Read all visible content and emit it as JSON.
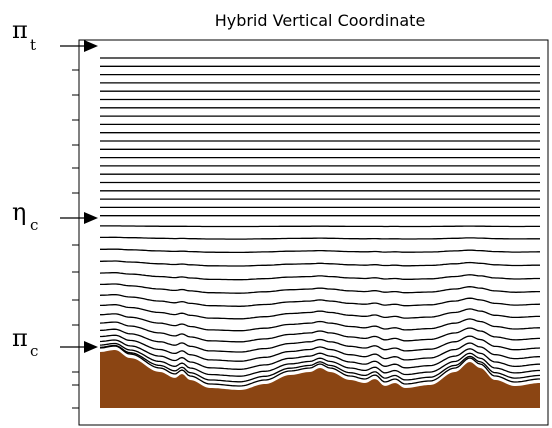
{
  "title": "Hybrid Vertical Coordinate",
  "levels": [
    {
      "symbol": "π",
      "subscript": "t"
    },
    {
      "symbol": "η",
      "subscript": "c"
    },
    {
      "symbol": "π",
      "subscript": "c"
    }
  ]
}
